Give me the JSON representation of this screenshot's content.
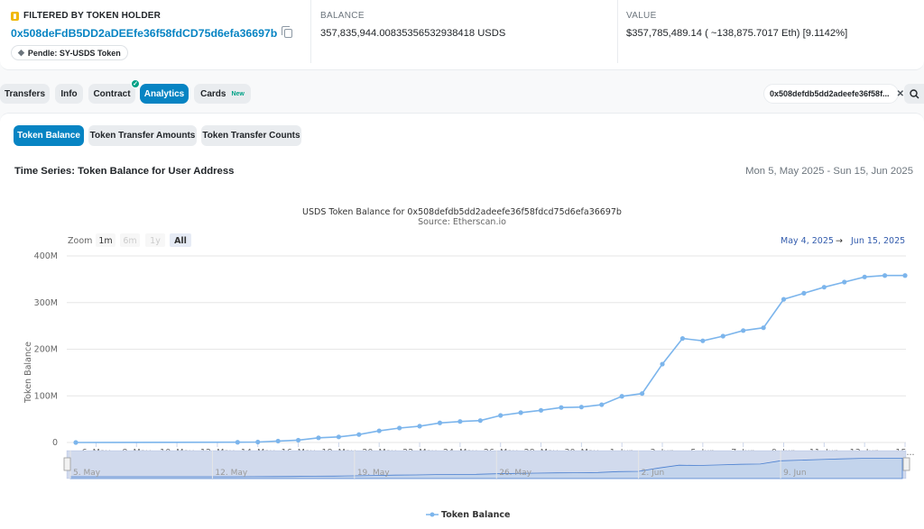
{
  "header": {
    "filtered_title": "FILTERED BY TOKEN HOLDER",
    "address": "0x508deFdB5DD2aDEEfe36f58fdCD75d6efa36697b",
    "tag": "Pendle: SY-USDS Token",
    "balance_label": "BALANCE",
    "balance_value": "357,835,944.00835356532938418 USDS",
    "value_label": "VALUE",
    "value_value": "$357,785,489.14 ( ~138,875.7017 Eth) [9.1142%]"
  },
  "tabs": [
    {
      "label": "Transfers"
    },
    {
      "label": "Info"
    },
    {
      "label": "Contract"
    },
    {
      "label": "Analytics"
    },
    {
      "label": "Cards",
      "badge": "New"
    }
  ],
  "filter": {
    "address": "0x508defdb5dd2adeefe36f58f..."
  },
  "subtabs": [
    {
      "label": "Token Balance"
    },
    {
      "label": "Token Transfer Amounts"
    },
    {
      "label": "Token Transfer Counts"
    }
  ],
  "timeseries": {
    "title": "Time Series: Token Balance for User Address",
    "range": "Mon 5, May 2025 - Sun 15, Jun 2025"
  },
  "chart_data": {
    "type": "line",
    "title": "USDS Token Balance for 0x508defdb5dd2adeefe36f58fdcd75d6efa36697b",
    "subtitle": "Source: Etherscan.io",
    "ylabel": "Token Balance",
    "xlabel": "",
    "zoom_label": "Zoom",
    "zoom_options": [
      "1m",
      "6m",
      "1y",
      "All"
    ],
    "range_from": "May 4, 2025",
    "range_arrow": "→",
    "range_to": "Jun 15, 2025",
    "ylim": [
      0,
      400
    ],
    "y_unit": "M",
    "yticks": [
      "0",
      "100M",
      "200M",
      "300M",
      "400M"
    ],
    "xlim": [
      "2025-05-05",
      "2025-06-15"
    ],
    "xticks": [
      "6. May",
      "8. May",
      "10. May",
      "12. May",
      "14. May",
      "16. May",
      "18. May",
      "20. May",
      "22. May",
      "24. May",
      "26. May",
      "28. May",
      "30. May",
      "1. Jun",
      "3. Jun",
      "5. Jun",
      "7. Jun",
      "9. Jun",
      "11. Jun",
      "13. Jun",
      "15..."
    ],
    "navigator_ticks": [
      "5. May",
      "12. May",
      "19. May",
      "26. May",
      "2. Jun",
      "9. Jun"
    ],
    "series": [
      {
        "name": "Token Balance",
        "color": "#7cb5ec",
        "x": [
          "2025-05-05",
          "2025-05-13",
          "2025-05-14",
          "2025-05-15",
          "2025-05-16",
          "2025-05-17",
          "2025-05-18",
          "2025-05-19",
          "2025-05-20",
          "2025-05-21",
          "2025-05-22",
          "2025-05-23",
          "2025-05-24",
          "2025-05-25",
          "2025-05-26",
          "2025-05-27",
          "2025-05-28",
          "2025-05-29",
          "2025-05-30",
          "2025-05-31",
          "2025-06-01",
          "2025-06-02",
          "2025-06-03",
          "2025-06-04",
          "2025-06-05",
          "2025-06-06",
          "2025-06-07",
          "2025-06-08",
          "2025-06-09",
          "2025-06-10",
          "2025-06-11",
          "2025-06-12",
          "2025-06-13",
          "2025-06-14",
          "2025-06-15"
        ],
        "values": [
          0,
          0.5,
          1,
          3,
          5,
          10,
          12,
          17,
          25,
          31,
          35,
          42,
          45,
          47,
          58,
          64,
          69,
          75,
          76,
          81,
          99,
          105,
          168,
          223,
          218,
          228,
          240,
          246,
          307,
          320,
          333,
          344,
          355,
          358,
          358
        ]
      }
    ],
    "legend": "bottom-center",
    "grid": true
  }
}
